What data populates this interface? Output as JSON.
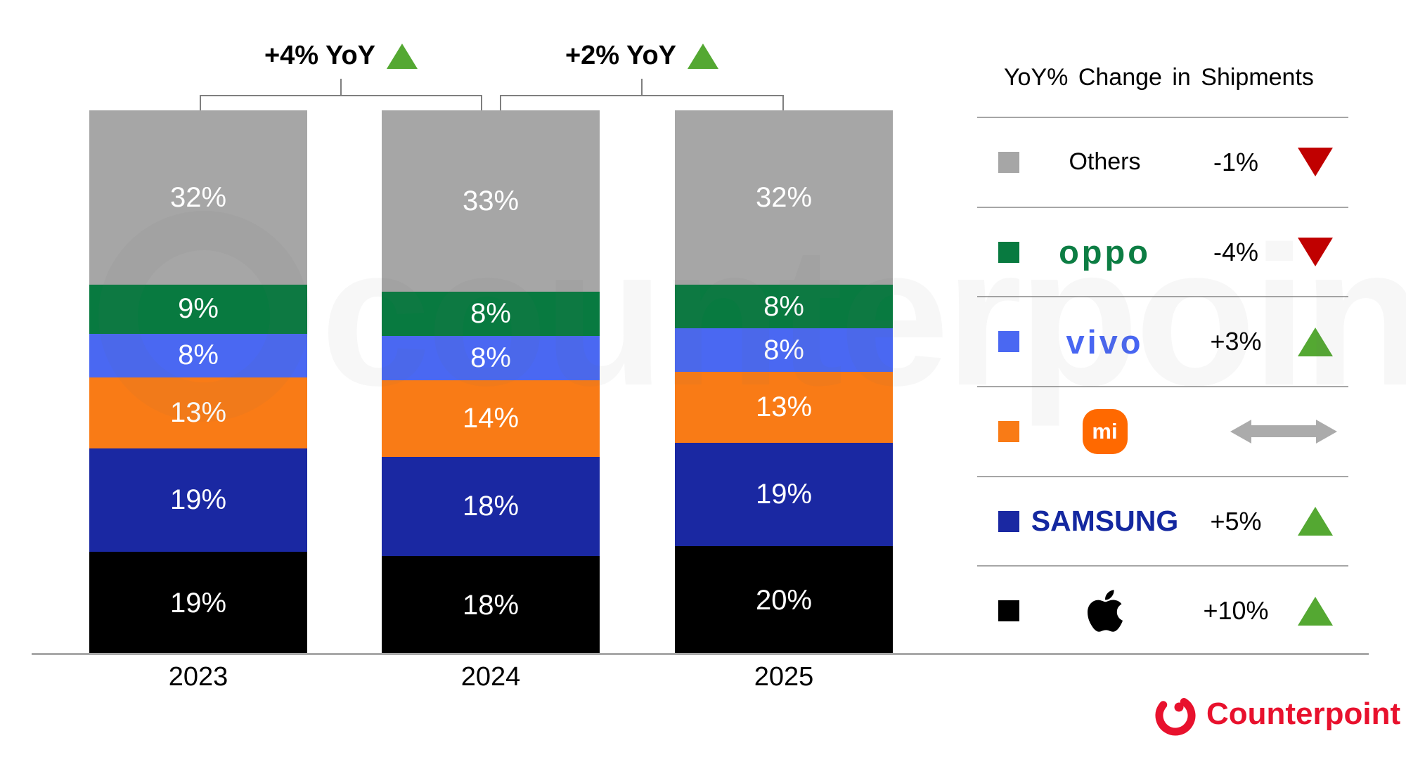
{
  "watermark": {
    "text": "counterpoint"
  },
  "branding": {
    "name": "Counterpoint"
  },
  "chart_data": {
    "type": "stacked-bar",
    "categories": [
      "2023",
      "2024",
      "2025"
    ],
    "unit": "%",
    "ylim": [
      0,
      100
    ],
    "series_bottom_to_top": [
      {
        "name": "Apple",
        "color": "#000000",
        "values": [
          19,
          18,
          20
        ]
      },
      {
        "name": "Samsung",
        "color": "#1a28a2",
        "values": [
          19,
          18,
          19
        ]
      },
      {
        "name": "Xiaomi",
        "color": "#f97b16",
        "values": [
          13,
          14,
          13
        ]
      },
      {
        "name": "vivo",
        "color": "#4a68f2",
        "values": [
          8,
          8,
          8
        ]
      },
      {
        "name": "OPPO",
        "color": "#087a40",
        "values": [
          9,
          8,
          8
        ]
      },
      {
        "name": "Others",
        "color": "#a6a6a6",
        "values": [
          32,
          33,
          32
        ]
      }
    ],
    "annotations": [
      {
        "label": "+4% YoY",
        "trend": "up",
        "from": 0,
        "to": 1
      },
      {
        "label": "+2% YoY",
        "trend": "up",
        "from": 1,
        "to": 2
      }
    ],
    "legend_position": "right",
    "grid": false
  },
  "legend": {
    "title": "YoY% Change in Shipments",
    "rows": [
      {
        "id": "others",
        "brand": "Others",
        "swatch": "#a6a6a6",
        "label_text": "Others",
        "change": "-1%",
        "trend": "down"
      },
      {
        "id": "oppo",
        "brand": "OPPO",
        "swatch": "#087a40",
        "logo_text": "oppo",
        "change": "-4%",
        "trend": "down"
      },
      {
        "id": "vivo",
        "brand": "vivo",
        "swatch": "#4a68f2",
        "logo_text": "vivo",
        "change": "+3%",
        "trend": "up"
      },
      {
        "id": "xiaomi",
        "brand": "Xiaomi",
        "swatch": "#f97b16",
        "logo_text": "mi",
        "change": "",
        "trend": "flat"
      },
      {
        "id": "samsung",
        "brand": "Samsung",
        "swatch": "#1a28a2",
        "logo_text": "SAMSUNG",
        "change": "+5%",
        "trend": "up"
      },
      {
        "id": "apple",
        "brand": "Apple",
        "swatch": "#000000",
        "change": "+10%",
        "trend": "up"
      }
    ]
  },
  "colors": {
    "trend_up": "#54a832",
    "trend_down": "#c00000",
    "trend_flat": "#ababab",
    "bracket": "#7f7f7f",
    "axis": "#a9a9a9",
    "divider": "#a6a6a6",
    "oppo_green": "#0c7d43",
    "vivo_blue": "#4866f2",
    "mi_orange": "#ff6900",
    "samsung_blue": "#1428a0",
    "counterpoint_red": "#e8112d"
  }
}
